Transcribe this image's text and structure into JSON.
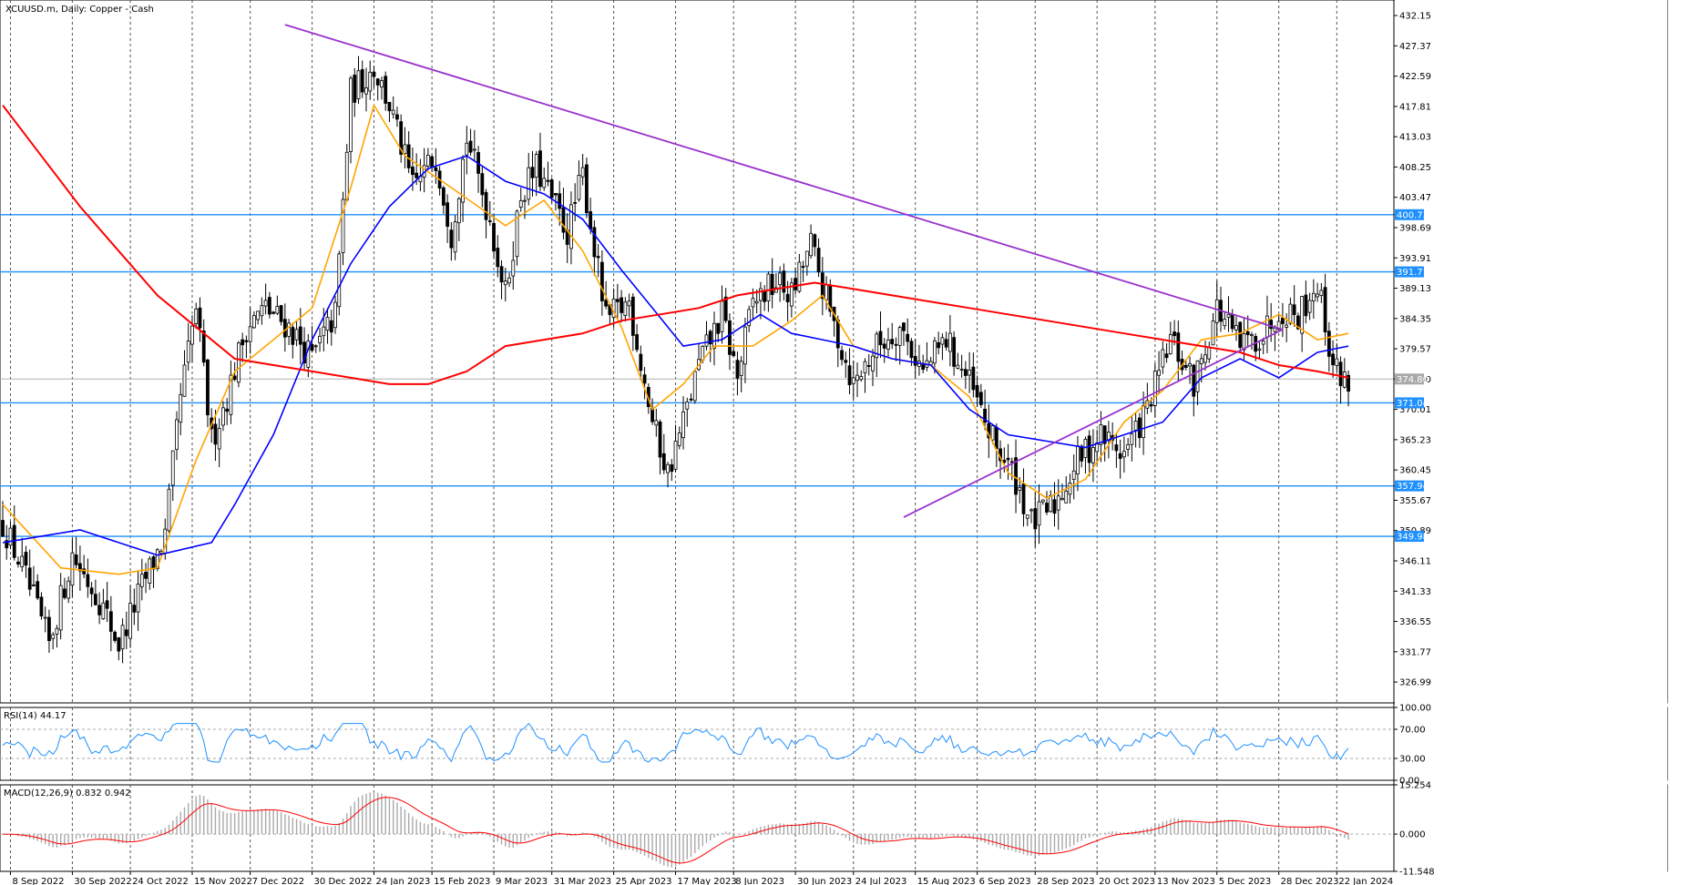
{
  "header": {
    "symbol_title": "XCUUSD.m, Daily:  Copper - Cash"
  },
  "colors": {
    "grid": "#555555",
    "bull_candle": "#000000",
    "bear_candle": "#000000",
    "ma_fast": "#ffa500",
    "ma_mid": "#0000ff",
    "ma_slow": "#ff0000",
    "trendline": "#9932cc",
    "horizontal_level": "#1e90ff",
    "rsi_line": "#1e90ff",
    "macd_signal": "#ff0000",
    "macd_hist": "#a9a9a9",
    "price_badge": "#1e90ff",
    "current_price_badge": "#a9a9a9"
  },
  "chart_data": [
    {
      "type": "candlestick",
      "panel": "main",
      "title": "XCUUSD.m, Daily:  Copper - Cash",
      "x_labels": [
        "8 Sep 2022",
        "30 Sep 2022",
        "24 Oct 2022",
        "15 Nov 2022",
        "7 Dec 2022",
        "30 Dec 2022",
        "24 Jan 2023",
        "15 Feb 2023",
        "9 Mar 2023",
        "31 Mar 2023",
        "25 Apr 2023",
        "17 May 2023",
        "8 Jun 2023",
        "30 Jun 2023",
        "24 Jul 2023",
        "15 Aug 2023",
        "6 Sep 2023",
        "28 Sep 2023",
        "20 Oct 2023",
        "13 Nov 2023",
        "5 Dec 2023",
        "28 Dec 2023",
        "22 Jan 2024"
      ],
      "y_ticks": [
        432.15,
        427.37,
        422.59,
        417.81,
        413.03,
        408.25,
        403.47,
        398.69,
        393.91,
        389.13,
        384.35,
        379.57,
        374.8,
        370.01,
        365.23,
        360.45,
        355.67,
        350.89,
        346.11,
        341.33,
        336.55,
        331.77,
        326.99
      ],
      "ylim": [
        323.7,
        434.6
      ],
      "close_anchors": [
        [
          0,
          352
        ],
        [
          5,
          345
        ],
        [
          12,
          333
        ],
        [
          18,
          347
        ],
        [
          25,
          340
        ],
        [
          30,
          333
        ],
        [
          36,
          342
        ],
        [
          42,
          350
        ],
        [
          46,
          372
        ],
        [
          50,
          386
        ],
        [
          54,
          365
        ],
        [
          58,
          372
        ],
        [
          63,
          383
        ],
        [
          68,
          386
        ],
        [
          74,
          383
        ],
        [
          80,
          378
        ],
        [
          86,
          385
        ],
        [
          90,
          420
        ],
        [
          96,
          424
        ],
        [
          100,
          418
        ],
        [
          106,
          405
        ],
        [
          112,
          410
        ],
        [
          116,
          398
        ],
        [
          120,
          413
        ],
        [
          126,
          400
        ],
        [
          130,
          388
        ],
        [
          134,
          404
        ],
        [
          138,
          408
        ],
        [
          146,
          398
        ],
        [
          150,
          407
        ],
        [
          156,
          384
        ],
        [
          162,
          387
        ],
        [
          168,
          368
        ],
        [
          172,
          360
        ],
        [
          176,
          368
        ],
        [
          180,
          377
        ],
        [
          186,
          385
        ],
        [
          190,
          375
        ],
        [
          194,
          387
        ],
        [
          200,
          390
        ],
        [
          204,
          388
        ],
        [
          209,
          396
        ],
        [
          214,
          385
        ],
        [
          220,
          374
        ],
        [
          226,
          380
        ],
        [
          232,
          383
        ],
        [
          238,
          376
        ],
        [
          244,
          381
        ],
        [
          250,
          374
        ],
        [
          256,
          365
        ],
        [
          262,
          359
        ],
        [
          266,
          352
        ],
        [
          272,
          355
        ],
        [
          278,
          362
        ],
        [
          284,
          366
        ],
        [
          290,
          363
        ],
        [
          296,
          370
        ],
        [
          302,
          381
        ],
        [
          308,
          374
        ],
        [
          314,
          386
        ],
        [
          320,
          380
        ],
        [
          326,
          382
        ],
        [
          330,
          386
        ],
        [
          335,
          385
        ],
        [
          340,
          390
        ],
        [
          344,
          377
        ],
        [
          348,
          374
        ]
      ],
      "moving_averages": [
        {
          "name": "",
          "color": "#ffa500",
          "points": [
            [
              0,
              355
            ],
            [
              15,
              345
            ],
            [
              30,
              344
            ],
            [
              40,
              345
            ],
            [
              50,
              362
            ],
            [
              60,
              376
            ],
            [
              70,
              381
            ],
            [
              80,
              386
            ],
            [
              90,
              405
            ],
            [
              96,
              418
            ],
            [
              104,
              410
            ],
            [
              116,
              405
            ],
            [
              130,
              399
            ],
            [
              140,
              403
            ],
            [
              150,
              395
            ],
            [
              160,
              383
            ],
            [
              168,
              370
            ],
            [
              176,
              374
            ],
            [
              184,
              380
            ],
            [
              194,
              380
            ],
            [
              204,
              384
            ],
            [
              212,
              388
            ],
            [
              220,
              380
            ],
            [
              230,
              378
            ],
            [
              240,
              377
            ],
            [
              250,
              372
            ],
            [
              260,
              360
            ],
            [
              270,
              356
            ],
            [
              280,
              359
            ],
            [
              290,
              368
            ],
            [
              300,
              373
            ],
            [
              310,
              381
            ],
            [
              320,
              382
            ],
            [
              330,
              385
            ],
            [
              340,
              381
            ],
            [
              348,
              382
            ]
          ]
        },
        {
          "name": "",
          "color": "#0000ff",
          "points": [
            [
              0,
              349
            ],
            [
              20,
              351
            ],
            [
              40,
              347
            ],
            [
              54,
              349
            ],
            [
              60,
              355
            ],
            [
              70,
              366
            ],
            [
              80,
              381
            ],
            [
              90,
              393
            ],
            [
              100,
              402
            ],
            [
              110,
              408
            ],
            [
              120,
              410
            ],
            [
              130,
              406
            ],
            [
              140,
              404
            ],
            [
              150,
              400
            ],
            [
              160,
              392
            ],
            [
              168,
              386
            ],
            [
              176,
              380
            ],
            [
              186,
              381
            ],
            [
              196,
              385
            ],
            [
              204,
              382
            ],
            [
              212,
              381
            ],
            [
              220,
              380
            ],
            [
              230,
              378
            ],
            [
              240,
              377
            ],
            [
              250,
              370
            ],
            [
              260,
              366
            ],
            [
              270,
              365
            ],
            [
              280,
              364
            ],
            [
              290,
              366
            ],
            [
              300,
              368
            ],
            [
              310,
              375
            ],
            [
              320,
              378
            ],
            [
              330,
              375
            ],
            [
              340,
              379
            ],
            [
              348,
              380
            ]
          ]
        },
        {
          "name": "",
          "color": "#ff0000",
          "points": [
            [
              0,
              418
            ],
            [
              10,
              410
            ],
            [
              20,
              402
            ],
            [
              30,
              395
            ],
            [
              40,
              388
            ],
            [
              50,
              383
            ],
            [
              60,
              378
            ],
            [
              70,
              377
            ],
            [
              80,
              376
            ],
            [
              90,
              375
            ],
            [
              100,
              374
            ],
            [
              110,
              374
            ],
            [
              120,
              376
            ],
            [
              130,
              380
            ],
            [
              140,
              381
            ],
            [
              150,
              382
            ],
            [
              160,
              384
            ],
            [
              170,
              385
            ],
            [
              180,
              386
            ],
            [
              190,
              388
            ],
            [
              200,
              389
            ],
            [
              210,
              390
            ],
            [
              220,
              389
            ],
            [
              230,
              388
            ],
            [
              240,
              387
            ],
            [
              250,
              386
            ],
            [
              260,
              385
            ],
            [
              270,
              384
            ],
            [
              280,
              383
            ],
            [
              290,
              382
            ],
            [
              300,
              381
            ],
            [
              310,
              380
            ],
            [
              320,
              379
            ],
            [
              330,
              377
            ],
            [
              340,
              376
            ],
            [
              348,
              375
            ]
          ]
        }
      ],
      "horizontal_levels": [
        400.73,
        391.71,
        371.04,
        357.94,
        349.98
      ],
      "current_price": 374.8,
      "trendlines": [
        {
          "from": [
            73,
            430.7
          ],
          "to": [
            331,
            382.6
          ]
        },
        {
          "from": [
            233,
            353.0
          ],
          "to": [
            331,
            382.6
          ]
        }
      ]
    },
    {
      "type": "line",
      "panel": "rsi",
      "title": "RSI(14) 44.17",
      "y_ticks": [
        100.0,
        70.0,
        30.0,
        0.0
      ],
      "ylim": [
        0,
        100
      ],
      "levels": [
        70,
        30
      ],
      "last_value": 44.17
    },
    {
      "type": "bar",
      "panel": "macd",
      "title": "MACD(12,26,9) 0.832 0.942",
      "y_ticks": [
        15.254,
        0.0,
        -11.548
      ],
      "ylim": [
        -11.548,
        15.254
      ],
      "macd": 0.832,
      "signal": 0.942
    }
  ]
}
